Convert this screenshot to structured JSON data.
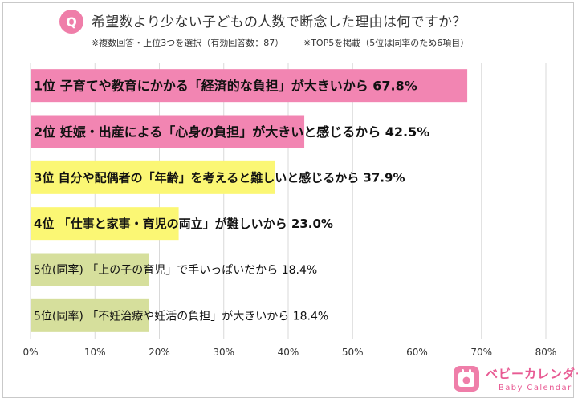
{
  "header": {
    "badge": "Q",
    "title": "希望数より少ない子どもの人数で断念した理由は何ですか？",
    "note_left": "※複数回答・上位3つを選択（有効回答数：87）",
    "note_right": "※TOP5を掲載（5位は同率のため6項目）"
  },
  "chart_data": {
    "type": "bar",
    "orientation": "horizontal",
    "categories": [
      "1位 子育てや教育にかかる「経済的な負担」が大きいから",
      "2位 妊娠・出産による「心身の負担」が大きいと感じるから",
      "3位 自分や配偶者の「年齢」を考えると難しいと感じるから",
      "4位 「仕事と家事・育児の両立」が難しいから",
      "5位(同率) 「上の子の育児」で手いっぱいだから",
      "5位(同率) 「不妊治療や妊活の負担」が大きいから"
    ],
    "values": [
      67.8,
      42.5,
      37.9,
      23.0,
      18.4,
      18.4
    ],
    "value_labels": [
      "67.8%",
      "42.5%",
      "37.9%",
      "23.0%",
      "18.4%",
      "18.4%"
    ],
    "bar_colors": [
      "#f285b2",
      "#f285b2",
      "#fbf774",
      "#fbf774",
      "#d6df9c",
      "#d6df9c"
    ],
    "xlim": [
      0,
      80
    ],
    "xticks": [
      "0%",
      "10%",
      "20%",
      "30%",
      "40%",
      "50%",
      "60%",
      "70%",
      "80%"
    ],
    "grid": true
  },
  "logo": {
    "name": "ベビーカレンダー",
    "sub": "Baby Calendar"
  }
}
